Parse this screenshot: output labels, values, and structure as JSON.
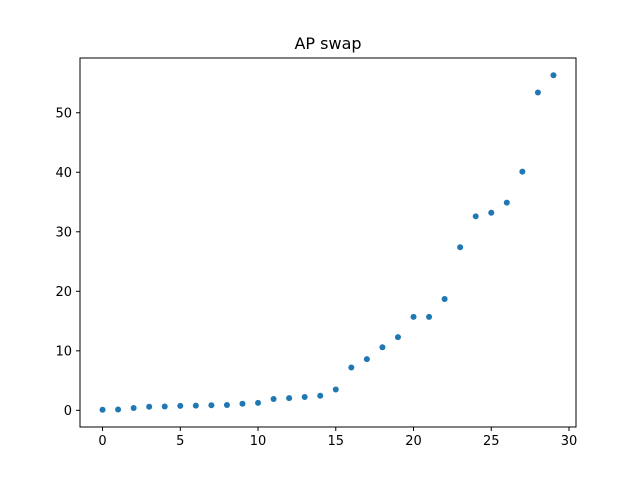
{
  "chart_data": {
    "type": "scatter",
    "title": "AP swap",
    "xlabel": "",
    "ylabel": "",
    "xlim": [
      -1.45,
      30.45
    ],
    "ylim": [
      -2.8,
      59.2
    ],
    "xticks": [
      0,
      5,
      10,
      15,
      20,
      25,
      30
    ],
    "yticks": [
      0,
      10,
      20,
      30,
      40,
      50
    ],
    "grid": false,
    "legend": "none",
    "marker_color": "#1f77b4",
    "series": [
      {
        "x": [
          0,
          1,
          2,
          3,
          4,
          5,
          6,
          7,
          8,
          9,
          10,
          11,
          12,
          13,
          14,
          15,
          16,
          17,
          18,
          19,
          20,
          21,
          22,
          23,
          24,
          25,
          26,
          27,
          28,
          29
        ],
        "y": [
          0.1,
          0.15,
          0.4,
          0.6,
          0.65,
          0.75,
          0.8,
          0.85,
          0.9,
          1.1,
          1.25,
          1.9,
          2.05,
          2.25,
          2.45,
          3.5,
          7.2,
          8.6,
          10.6,
          12.3,
          15.7,
          15.7,
          18.7,
          27.4,
          32.6,
          33.2,
          34.9,
          40.1,
          53.4,
          56.3
        ]
      }
    ]
  }
}
